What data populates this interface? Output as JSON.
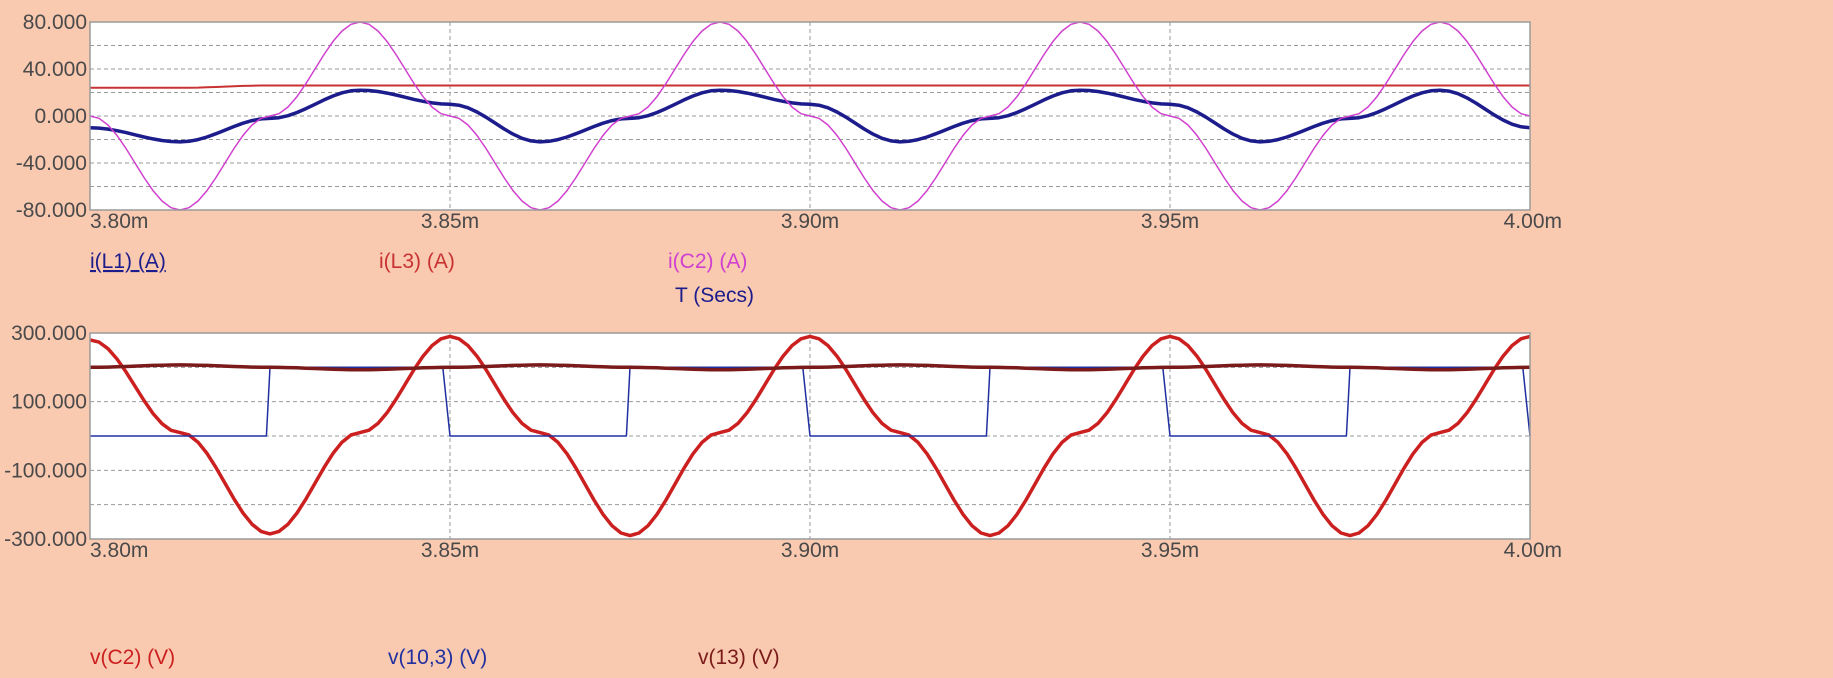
{
  "chart_data": [
    {
      "type": "line",
      "xlabel": "T (Secs)",
      "x_ticks": [
        "3.80m",
        "3.85m",
        "3.90m",
        "3.95m",
        "4.00m"
      ],
      "xlim": [
        0.0038,
        0.004
      ],
      "y_ticks": [
        "80.000",
        "40.000",
        "0.000",
        "-40.000",
        "-80.000"
      ],
      "ylim": [
        -80,
        80
      ],
      "grid": true,
      "x": [
        0.0038,
        0.0038125,
        0.003825,
        0.0038375,
        0.00385,
        0.0038625,
        0.003875,
        0.0038875,
        0.0039,
        0.0039125,
        0.003925,
        0.0039375,
        0.00395,
        0.0039625,
        0.003975,
        0.0039875,
        0.004
      ],
      "series": [
        {
          "name": "i(L1) (A)",
          "color": "#1c1c8c",
          "values": [
            -10,
            -22,
            -2,
            22,
            10,
            -22,
            -2,
            22,
            10,
            -22,
            -2,
            22,
            10,
            -22,
            -2,
            22,
            -10
          ]
        },
        {
          "name": "i(L3) (A)",
          "color": "#c83232",
          "values": [
            24,
            24,
            26,
            26,
            26,
            26,
            26,
            26,
            26,
            26,
            26,
            26,
            26,
            26,
            26,
            26,
            26
          ]
        },
        {
          "name": "i(C2) (A)",
          "color": "#d040d0",
          "values": [
            0,
            -80,
            0,
            80,
            0,
            -80,
            0,
            80,
            0,
            -80,
            0,
            80,
            0,
            -80,
            0,
            80,
            0
          ]
        }
      ]
    },
    {
      "type": "line",
      "xlabel": "",
      "x_ticks": [
        "3.80m",
        "3.85m",
        "3.90m",
        "3.95m",
        "4.00m"
      ],
      "xlim": [
        0.0038,
        0.004
      ],
      "y_ticks": [
        "300.000",
        "100.000",
        "-100.000",
        "-300.000"
      ],
      "ylim": [
        -300,
        300
      ],
      "grid": true,
      "x": [
        0.0038,
        0.0038125,
        0.003825,
        0.0038375,
        0.00385,
        0.0038625,
        0.003875,
        0.0038875,
        0.0039,
        0.0039125,
        0.003925,
        0.0039375,
        0.00395,
        0.0039625,
        0.003975,
        0.0039875,
        0.004
      ],
      "series": [
        {
          "name": "v(C2) (V)",
          "color": "#cc2020",
          "values": [
            280,
            10,
            -285,
            10,
            290,
            10,
            -290,
            10,
            290,
            10,
            -290,
            10,
            290,
            10,
            -290,
            10,
            290
          ]
        },
        {
          "name": "v(10,3) (V)",
          "color": "#2030a0",
          "step_times": [
            0.0038,
            0.0038245,
            0.003825,
            0.003849,
            0.00385,
            0.0038745,
            0.003875,
            0.003899,
            0.0039,
            0.0039245,
            0.003925,
            0.003949,
            0.00395,
            0.0039745,
            0.003975,
            0.003999,
            0.004
          ],
          "step_values": [
            0,
            0,
            200,
            200,
            0,
            0,
            200,
            200,
            0,
            0,
            200,
            200,
            0,
            0,
            200,
            200,
            0
          ]
        },
        {
          "name": "v(13) (V)",
          "color": "#7a1a1a",
          "values": [
            200,
            207,
            200,
            193,
            200,
            207,
            200,
            193,
            200,
            207,
            200,
            193,
            200,
            207,
            200,
            193,
            200
          ]
        }
      ]
    }
  ]
}
